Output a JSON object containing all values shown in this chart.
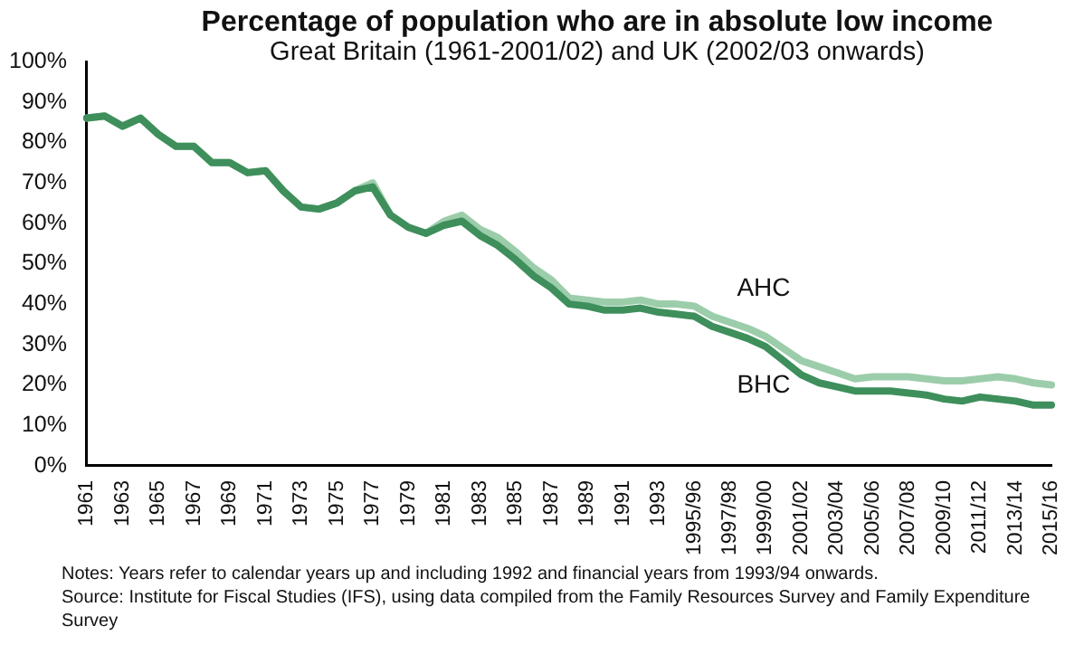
{
  "chart_data": {
    "type": "line",
    "title": "Percentage of population who are in absolute low income",
    "subtitle": "Great Britain (1961-2001/02) and UK (2002/03 onwards)",
    "categories": [
      "1961",
      null,
      "1963",
      null,
      "1965",
      null,
      "1967",
      null,
      "1969",
      null,
      "1971",
      null,
      "1973",
      null,
      "1975",
      null,
      "1977",
      null,
      "1979",
      null,
      "1981",
      null,
      "1983",
      null,
      "1985",
      null,
      "1987",
      null,
      "1989",
      null,
      "1991",
      null,
      "1993",
      null,
      "1995/96",
      null,
      "1997/98",
      null,
      "1999/00",
      null,
      "2001/02",
      null,
      "2003/04",
      null,
      "2005/06",
      null,
      "2007/08",
      null,
      "2009/10",
      null,
      "2011/12",
      null,
      "2013/14",
      null,
      "2015/16"
    ],
    "series": [
      {
        "name": "AHC",
        "color": "#9ccdaa",
        "values": [
          86,
          86.5,
          84,
          86,
          82,
          79,
          79,
          75,
          75,
          72.5,
          73,
          68,
          64,
          63.5,
          65,
          68,
          70,
          62,
          59,
          57.5,
          60.5,
          62,
          58.5,
          56.5,
          53,
          49,
          46,
          41.5,
          41,
          40.5,
          40.5,
          41,
          40,
          40,
          39.5,
          37,
          35.5,
          34,
          32,
          29,
          26,
          24.5,
          23,
          21.5,
          22,
          22,
          22,
          21.5,
          21,
          21,
          21.5,
          22,
          21.5,
          20.5,
          20
        ]
      },
      {
        "name": "BHC",
        "color": "#3e8f5b",
        "values": [
          86,
          86.5,
          84,
          86,
          82,
          79,
          79,
          75,
          75,
          72.5,
          73,
          68,
          64,
          63.5,
          65,
          68,
          69,
          62,
          59,
          57.5,
          59.5,
          60.5,
          57,
          54.5,
          51,
          47,
          44,
          40,
          39.5,
          38.5,
          38.5,
          39,
          38,
          37.5,
          37,
          34.5,
          33,
          31.5,
          29.5,
          26,
          22.5,
          20.5,
          19.5,
          18.5,
          18.5,
          18.5,
          18,
          17.5,
          16.5,
          16,
          17,
          16.5,
          16,
          15,
          15
        ]
      }
    ],
    "ylim": [
      0,
      100
    ],
    "yticks": [
      {
        "value": 0,
        "label": "0%"
      },
      {
        "value": 10,
        "label": "10%"
      },
      {
        "value": 20,
        "label": "20%"
      },
      {
        "value": 30,
        "label": "30%"
      },
      {
        "value": 40,
        "label": "40%"
      },
      {
        "value": 50,
        "label": "50%"
      },
      {
        "value": 60,
        "label": "60%"
      },
      {
        "value": 70,
        "label": "70%"
      },
      {
        "value": 80,
        "label": "80%"
      },
      {
        "value": 90,
        "label": "90%"
      },
      {
        "value": 100,
        "label": "100%"
      }
    ],
    "grid": false,
    "legend": false,
    "marker": "none",
    "line_style": "solid",
    "annotations": [
      "Notes: Years refer to calendar years up and including 1992 and financial years from 1993/94 onwards.",
      "Source: Institute for Fiscal Studies (IFS), using data compiled from the Family Resources Survey and Family Expenditure Survey"
    ]
  }
}
